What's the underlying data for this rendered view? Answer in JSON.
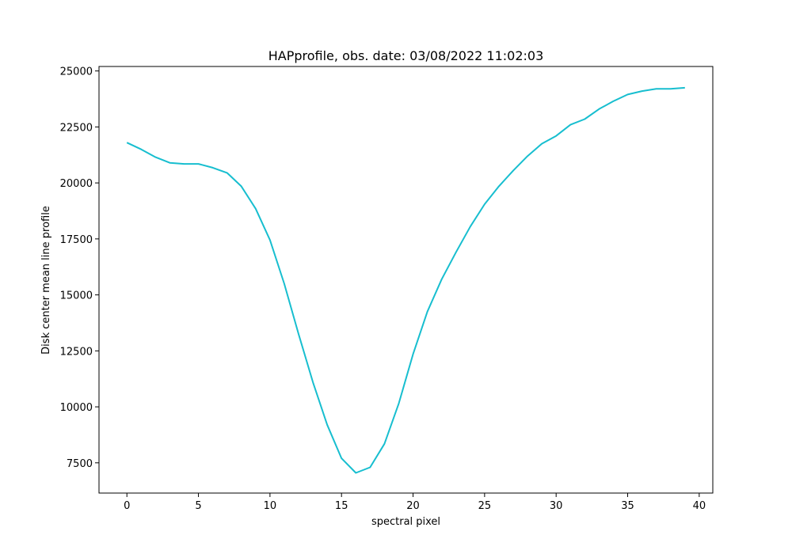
{
  "chart_data": {
    "type": "line",
    "title": "HAPprofile, obs. date: 03/08/2022 11:02:03",
    "xlabel": "spectral pixel",
    "ylabel": "Disk center mean line profile",
    "xlim": [
      -1.95,
      40.95
    ],
    "ylim": [
      6150,
      25200
    ],
    "xticks": [
      0,
      5,
      10,
      15,
      20,
      25,
      30,
      35,
      40
    ],
    "yticks": [
      7500,
      10000,
      12500,
      15000,
      17500,
      20000,
      22500,
      25000
    ],
    "grid": false,
    "legend": "none",
    "series": [
      {
        "color": "#17becf",
        "x": [
          0,
          1,
          2,
          3,
          4,
          5,
          6,
          7,
          8,
          9,
          10,
          11,
          12,
          13,
          14,
          15,
          16,
          17,
          18,
          19,
          20,
          21,
          22,
          23,
          24,
          25,
          26,
          27,
          28,
          29,
          30,
          31,
          32,
          33,
          34,
          35,
          36,
          37,
          38,
          39
        ],
        "y": [
          21800,
          21500,
          21150,
          20900,
          20850,
          20850,
          20680,
          20450,
          19850,
          18850,
          17450,
          15500,
          13250,
          11100,
          9200,
          7700,
          7050,
          7300,
          8350,
          10150,
          12350,
          14250,
          15700,
          16900,
          18050,
          19050,
          19850,
          20550,
          21200,
          21750,
          22100,
          22600,
          22850,
          23300,
          23650,
          23950,
          24100,
          24200,
          24200,
          24250
        ]
      }
    ]
  }
}
